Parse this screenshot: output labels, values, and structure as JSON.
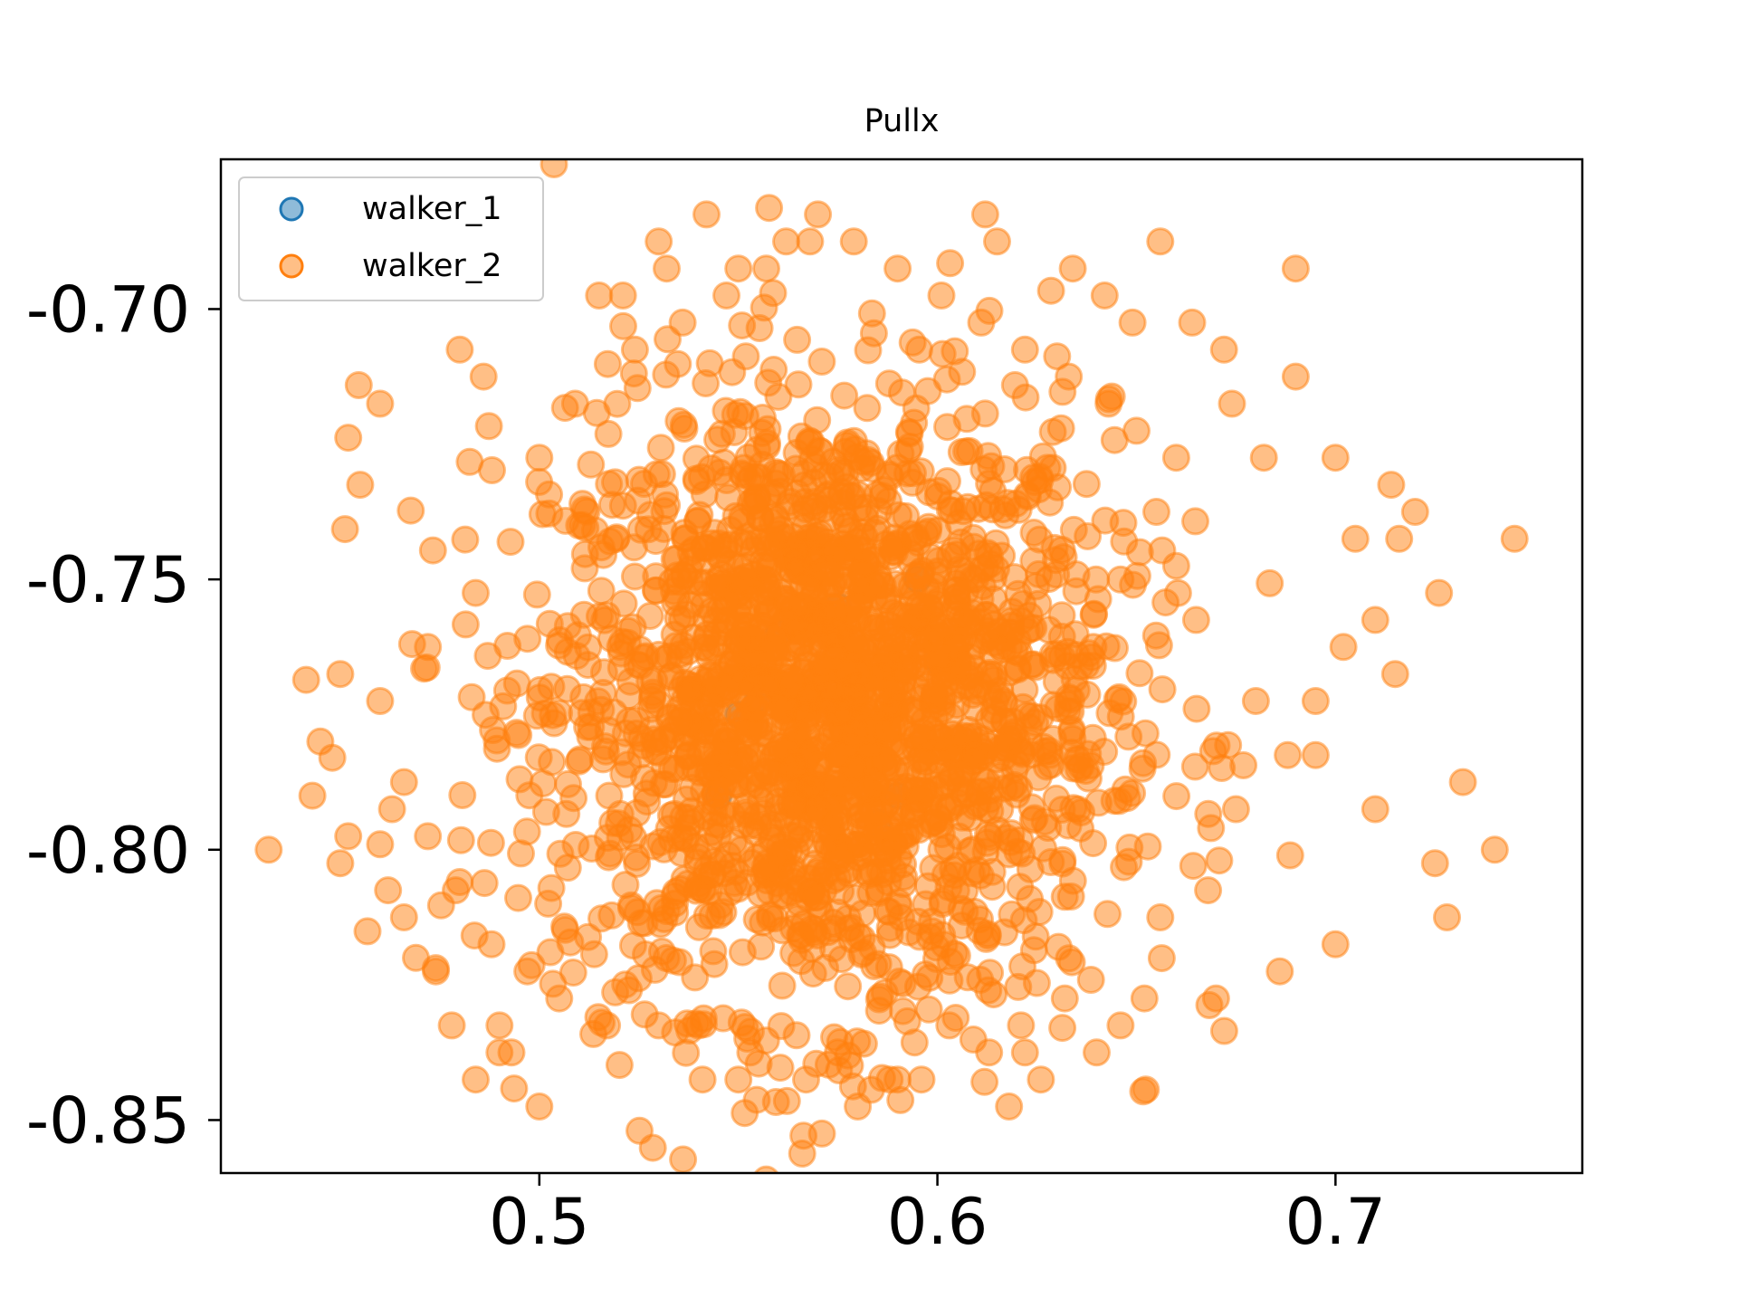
{
  "chart_data": {
    "type": "scatter",
    "title": "Pullx",
    "xlabel": "",
    "ylabel": "",
    "xlim": [
      0.42,
      0.762
    ],
    "ylim": [
      -0.8598,
      -0.6723
    ],
    "xticks": [
      0.5,
      0.6,
      0.7
    ],
    "xtick_labels": [
      "0.5",
      "0.6",
      "0.7"
    ],
    "yticks": [
      -0.7,
      -0.75,
      -0.8,
      -0.85
    ],
    "ytick_labels": [
      "-0.70",
      "-0.75",
      "-0.80",
      "-0.85"
    ],
    "grid": false,
    "legend": {
      "location": "top-left",
      "entries": [
        {
          "name": "walker_1",
          "color": "#1f77b4"
        },
        {
          "name": "walker_2",
          "color": "#ff7f0e"
        }
      ]
    },
    "series": [
      {
        "name": "walker_1",
        "color": "#1f77b4",
        "alpha": 0.5,
        "x": [
          0.57,
          0.58,
          0.56,
          0.59,
          0.55,
          0.6,
          0.565,
          0.575,
          0.585,
          0.555,
          0.545,
          0.595
        ],
        "y": [
          -0.77,
          -0.78,
          -0.76,
          -0.79,
          -0.775,
          -0.765,
          -0.785,
          -0.755,
          -0.795,
          -0.772,
          -0.79,
          -0.75
        ]
      },
      {
        "name": "walker_2",
        "color": "#ff7f0e",
        "alpha": 0.5,
        "x": [
          0.432,
          0.448,
          0.45,
          0.45,
          0.452,
          0.455,
          0.46,
          0.463,
          0.443,
          0.445,
          0.452,
          0.46,
          0.462,
          0.466,
          0.469,
          0.474,
          0.478,
          0.484,
          0.49,
          0.493,
          0.48,
          0.486,
          0.521,
          0.532,
          0.542,
          0.55,
          0.562,
          0.57,
          0.571,
          0.58,
          0.588,
          0.596,
          0.612,
          0.615,
          0.618,
          0.622,
          0.626,
          0.634,
          0.642,
          0.649,
          0.656,
          0.66,
          0.664,
          0.672,
          0.674,
          0.682,
          0.69,
          0.69,
          0.7,
          0.705,
          0.714,
          0.716,
          0.72,
          0.726,
          0.732,
          0.74,
          0.745,
          0.715,
          0.71,
          0.702,
          0.695,
          0.688,
          0.675,
          0.668,
          0.656,
          0.652,
          0.646,
          0.64,
          0.632,
          0.621,
          0.613,
          0.603,
          0.59,
          0.575,
          0.567,
          0.553,
          0.541,
          0.53,
          0.517,
          0.505,
          0.497,
          0.488,
          0.479,
          0.472,
          0.466,
          0.46,
          0.472,
          0.484,
          0.5,
          0.509,
          0.524,
          0.536,
          0.547,
          0.557,
          0.568,
          0.579,
          0.59,
          0.601,
          0.611,
          0.622,
          0.633,
          0.643,
          0.65,
          0.68,
          0.695,
          0.71,
          0.725,
          0.728,
          0.7,
          0.686,
          0.67,
          0.665,
          0.66,
          0.655,
          0.5,
          0.49,
          0.515,
          0.53,
          0.54,
          0.55
        ],
        "y": [
          -0.8,
          -0.783,
          -0.7675,
          -0.8025,
          -0.7238,
          -0.7325,
          -0.7175,
          -0.7925,
          -0.79,
          -0.78,
          -0.7975,
          -0.799,
          -0.8075,
          -0.8125,
          -0.82,
          -0.8225,
          -0.8325,
          -0.8425,
          -0.8325,
          -0.8375,
          -0.7075,
          -0.7125,
          -0.6975,
          -0.6925,
          -0.6825,
          -0.6925,
          -0.6875,
          -0.6825,
          -0.8525,
          -0.8475,
          -0.8425,
          -0.8425,
          -0.6825,
          -0.6875,
          -0.8475,
          -0.8375,
          -0.8425,
          -0.6925,
          -0.6975,
          -0.7025,
          -0.6875,
          -0.7275,
          -0.7025,
          -0.7075,
          -0.7175,
          -0.7275,
          -0.6925,
          -0.7125,
          -0.7275,
          -0.7425,
          -0.7325,
          -0.7425,
          -0.7375,
          -0.7525,
          -0.7875,
          -0.8,
          -0.7425,
          -0.7675,
          -0.7575,
          -0.7625,
          -0.7725,
          -0.7825,
          -0.7925,
          -0.8075,
          -0.8125,
          -0.8275,
          -0.8325,
          -0.8375,
          -0.8275,
          -0.8325,
          -0.8375,
          -0.8325,
          -0.8425,
          -0.8375,
          -0.8425,
          -0.8375,
          -0.8425,
          -0.8325,
          -0.8325,
          -0.8275,
          -0.8225,
          -0.8175,
          -0.8075,
          -0.7975,
          -0.7875,
          -0.7725,
          -0.7625,
          -0.7525,
          -0.7275,
          -0.7175,
          -0.7075,
          -0.7025,
          -0.6975,
          -0.6925,
          -0.6875,
          -0.6875,
          -0.6925,
          -0.6975,
          -0.7025,
          -0.7075,
          -0.7125,
          -0.7175,
          -0.7225,
          -0.7725,
          -0.7825,
          -0.7925,
          -0.8025,
          -0.8125,
          -0.8175,
          -0.8225,
          -0.8275,
          -0.7575,
          -0.7475,
          -0.7375,
          -0.8475,
          -0.8375,
          -0.6975,
          -0.6875,
          -0.8325,
          -0.8425
        ]
      }
    ],
    "dense_region": {
      "series": "walker_2",
      "center": [
        0.573,
        -0.773
      ],
      "spread": [
        0.035,
        0.028
      ]
    }
  }
}
